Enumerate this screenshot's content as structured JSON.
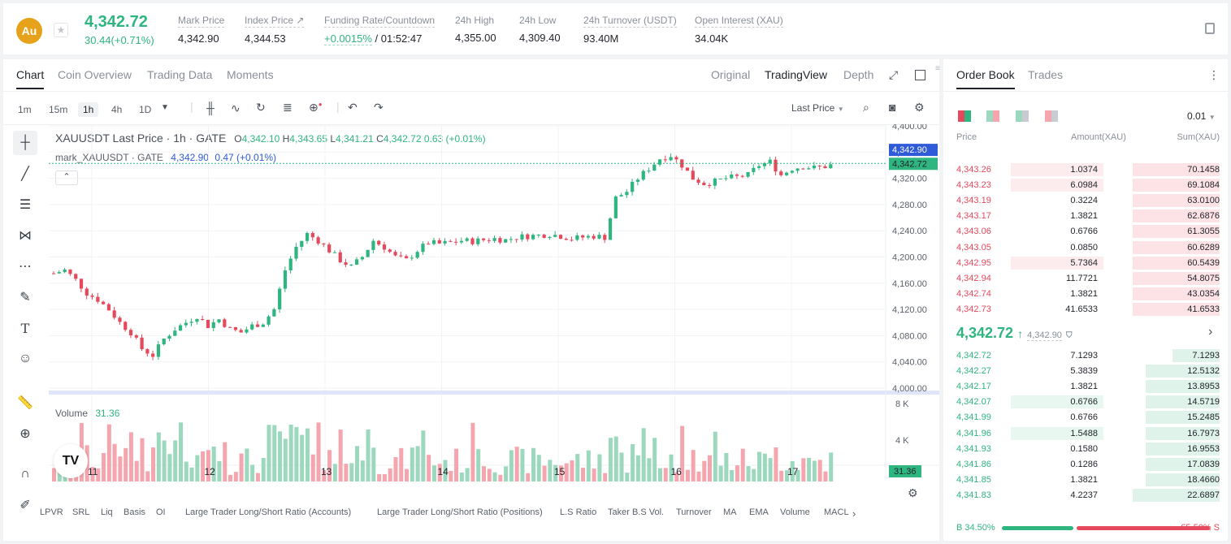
{
  "header": {
    "coin_logo": "Au",
    "last_price": "4,342.72",
    "price_change": "30.44(+0.71%)",
    "stats": [
      {
        "label": "Mark Price",
        "value": "4,342.90"
      },
      {
        "label": "Index Price ↗",
        "value": "4,344.53"
      },
      {
        "label": "Funding Rate/Countdown",
        "value_green": "+0.0015%",
        "value_rest": " / 01:52:47"
      },
      {
        "label": "24h High",
        "value": "4,355.00"
      },
      {
        "label": "24h Low",
        "value": "4,309.40"
      },
      {
        "label": "24h Turnover (USDT)",
        "value": "93.40M"
      },
      {
        "label": "Open Interest (XAU)",
        "value": "34.04K"
      }
    ]
  },
  "chart_tabs": [
    "Chart",
    "Coin Overview",
    "Trading Data",
    "Moments"
  ],
  "view_tabs": [
    "Original",
    "TradingView",
    "Depth"
  ],
  "intervals": [
    "1m",
    "15m",
    "1h",
    "4h",
    "1D"
  ],
  "last_price_select": "Last Price",
  "legend": {
    "title": "XAUUSDT Last Price · 1h · GATE",
    "o_label": "O",
    "o": "4,342.10",
    "h_label": "H",
    "h": "4,343.65",
    "l_label": "L",
    "l": "4,341.21",
    "c_label": "C",
    "c": "4,342.72",
    "chg": "0.63 (+0.01%)",
    "mark_label": "mark_XAUUSDT · GATE",
    "mark_value": "4,342.90",
    "mark_chg": "0.47 (+0.01%)",
    "volume_label": "Volume",
    "volume_value": "31.36"
  },
  "chart_data": {
    "type": "candlestick",
    "y_ticks": [
      "4,400.00",
      "4,360.00",
      "4,320.00",
      "4,280.00",
      "4,240.00",
      "4,200.00",
      "4,160.00",
      "4,120.00",
      "4,080.00",
      "4,040.00",
      "4,000.00"
    ],
    "ylim": [
      4000,
      4400
    ],
    "x_ticks": [
      "11",
      "12",
      "13",
      "14",
      "15",
      "16",
      "17"
    ],
    "volume_ticks": [
      "8 K",
      "4 K"
    ],
    "mark_price_tag": "4,342.90",
    "last_price_tag": "4,342.72",
    "volume_tag": "31.36",
    "close_path": [
      [
        0,
        4175
      ],
      [
        2,
        4180
      ],
      [
        4,
        4165
      ],
      [
        6,
        4145
      ],
      [
        8,
        4135
      ],
      [
        10,
        4120
      ],
      [
        12,
        4100
      ],
      [
        14,
        4085
      ],
      [
        16,
        4060
      ],
      [
        18,
        4050
      ],
      [
        20,
        4075
      ],
      [
        22,
        4090
      ],
      [
        24,
        4100
      ],
      [
        26,
        4110
      ],
      [
        28,
        4095
      ],
      [
        30,
        4105
      ],
      [
        32,
        4090
      ],
      [
        34,
        4085
      ],
      [
        36,
        4095
      ],
      [
        38,
        4100
      ],
      [
        40,
        4120
      ],
      [
        42,
        4180
      ],
      [
        44,
        4215
      ],
      [
        46,
        4235
      ],
      [
        48,
        4225
      ],
      [
        50,
        4210
      ],
      [
        52,
        4195
      ],
      [
        54,
        4185
      ],
      [
        56,
        4200
      ],
      [
        58,
        4225
      ],
      [
        60,
        4215
      ],
      [
        62,
        4200
      ],
      [
        64,
        4195
      ],
      [
        66,
        4210
      ],
      [
        68,
        4222
      ],
      [
        70,
        4220
      ],
      [
        72,
        4222
      ],
      [
        74,
        4225
      ],
      [
        76,
        4224
      ],
      [
        78,
        4226
      ],
      [
        80,
        4228
      ],
      [
        82,
        4226
      ],
      [
        84,
        4230
      ],
      [
        86,
        4232
      ],
      [
        88,
        4233
      ],
      [
        90,
        4235
      ],
      [
        92,
        4232
      ],
      [
        94,
        4228
      ],
      [
        96,
        4230
      ],
      [
        98,
        4232
      ],
      [
        100,
        4230
      ],
      [
        102,
        4290
      ],
      [
        104,
        4300
      ],
      [
        106,
        4320
      ],
      [
        108,
        4335
      ],
      [
        110,
        4350
      ],
      [
        112,
        4355
      ],
      [
        114,
        4340
      ],
      [
        116,
        4320
      ],
      [
        118,
        4312
      ],
      [
        120,
        4315
      ],
      [
        122,
        4320
      ],
      [
        124,
        4322
      ],
      [
        126,
        4325
      ],
      [
        128,
        4340
      ],
      [
        130,
        4345
      ],
      [
        132,
        4325
      ],
      [
        134,
        4335
      ],
      [
        136,
        4338
      ],
      [
        138,
        4336
      ],
      [
        140,
        4338
      ],
      [
        142,
        4342
      ]
    ]
  },
  "bottom_indicators": [
    "LPVR",
    "SRL",
    "Liq",
    "Basis",
    "OI",
    "Large Trader Long/Short Ratio (Accounts)",
    "Large Trader Long/Short Ratio (Positions)",
    "L.S Ratio",
    "Taker B.S Vol.",
    "Turnover",
    "MA",
    "EMA",
    "Volume",
    "MACL"
  ],
  "orderbook": {
    "tabs": [
      "Order Book",
      "Trades"
    ],
    "precision": "0.01",
    "col_price": "Price",
    "col_amount": "Amount(XAU)",
    "col_sum": "Sum(XAU)",
    "asks": [
      {
        "price": "4,343.26",
        "amount": "1.0374",
        "sum": "70.1458",
        "afill": 0.95,
        "sfill": 0.33
      },
      {
        "price": "4,343.23",
        "amount": "6.0984",
        "sum": "69.1084",
        "afill": 0.95,
        "sfill": 0.33
      },
      {
        "price": "4,343.19",
        "amount": "0.3224",
        "sum": "63.0100",
        "afill": 0.0,
        "sfill": 0.33
      },
      {
        "price": "4,343.17",
        "amount": "1.3821",
        "sum": "62.6876",
        "afill": 0.0,
        "sfill": 0.33
      },
      {
        "price": "4,343.06",
        "amount": "0.6766",
        "sum": "61.3055",
        "afill": 0.0,
        "sfill": 0.33
      },
      {
        "price": "4,343.05",
        "amount": "0.0850",
        "sum": "60.6289",
        "afill": 0.0,
        "sfill": 0.33
      },
      {
        "price": "4,342.95",
        "amount": "5.7364",
        "sum": "60.5439",
        "afill": 0.95,
        "sfill": 0.33
      },
      {
        "price": "4,342.94",
        "amount": "11.7721",
        "sum": "54.8075",
        "afill": 0.0,
        "sfill": 0.33
      },
      {
        "price": "4,342.74",
        "amount": "1.3821",
        "sum": "43.0354",
        "afill": 0.0,
        "sfill": 0.33
      },
      {
        "price": "4,342.73",
        "amount": "41.6533",
        "sum": "41.6533",
        "afill": 0.0,
        "sfill": 0.33
      }
    ],
    "mid_price": "4,342.72",
    "mid_arrow": "↑",
    "mid_mark": "4,342.90",
    "bids": [
      {
        "price": "4,342.72",
        "amount": "7.1293",
        "sum": "7.1293",
        "afill": 0.0,
        "sfill": 0.18
      },
      {
        "price": "4,342.27",
        "amount": "5.3839",
        "sum": "12.5132",
        "afill": 0.0,
        "sfill": 0.28
      },
      {
        "price": "4,342.17",
        "amount": "1.3821",
        "sum": "13.8953",
        "afill": 0.0,
        "sfill": 0.28
      },
      {
        "price": "4,342.07",
        "amount": "0.6766",
        "sum": "14.5719",
        "afill": 0.95,
        "sfill": 0.28
      },
      {
        "price": "4,341.99",
        "amount": "0.6766",
        "sum": "15.2485",
        "afill": 0.0,
        "sfill": 0.28
      },
      {
        "price": "4,341.96",
        "amount": "1.5488",
        "sum": "16.7973",
        "afill": 0.95,
        "sfill": 0.28
      },
      {
        "price": "4,341.93",
        "amount": "0.1580",
        "sum": "16.9553",
        "afill": 0.0,
        "sfill": 0.28
      },
      {
        "price": "4,341.86",
        "amount": "0.1286",
        "sum": "17.0839",
        "afill": 0.0,
        "sfill": 0.28
      },
      {
        "price": "4,341.85",
        "amount": "1.3821",
        "sum": "18.4660",
        "afill": 0.0,
        "sfill": 0.28
      },
      {
        "price": "4,341.83",
        "amount": "4.2237",
        "sum": "22.6897",
        "afill": 0.0,
        "sfill": 0.33
      }
    ],
    "buy_ratio": "B 34.50%",
    "sell_ratio": "65.50% S",
    "buy_fraction": 0.345
  },
  "colors": {
    "up": "#2fb57f",
    "down": "#e5495c",
    "mark": "#2f5bd8"
  }
}
